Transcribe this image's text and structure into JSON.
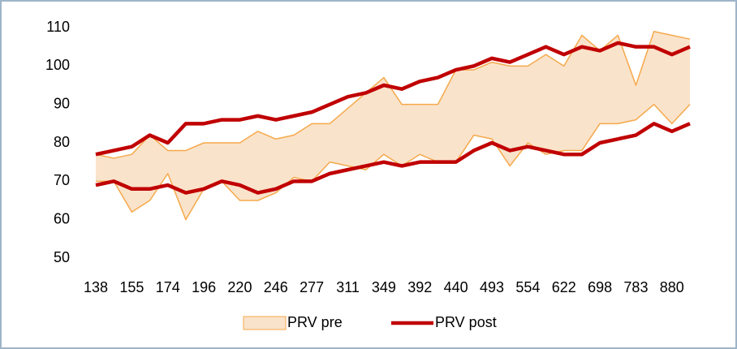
{
  "chart_data": {
    "type": "band",
    "categories": [
      138,
      null,
      155,
      null,
      174,
      null,
      196,
      null,
      220,
      null,
      246,
      null,
      277,
      null,
      311,
      null,
      349,
      null,
      392,
      null,
      440,
      null,
      493,
      null,
      554,
      null,
      622,
      null,
      698,
      null,
      783,
      null,
      880,
      null
    ],
    "series": [
      {
        "name": "PRV pre",
        "color": "#f5a94b",
        "fill": "#fae3cb",
        "high": [
          77,
          76,
          77,
          82,
          78,
          78,
          80,
          80,
          80,
          83,
          81,
          82,
          85,
          85,
          89,
          93,
          97,
          90,
          90,
          90,
          99,
          99,
          101,
          100,
          100,
          103,
          100,
          108,
          104,
          108,
          95,
          109,
          108,
          107
        ],
        "low": [
          70,
          70,
          62,
          65,
          72,
          60,
          68,
          70,
          65,
          65,
          67,
          71,
          70,
          75,
          74,
          73,
          77,
          74,
          77,
          75,
          75,
          82,
          81,
          74,
          80,
          77,
          78,
          78,
          85,
          85,
          86,
          90,
          85,
          90
        ]
      },
      {
        "name": "PRV post",
        "color": "#c00000",
        "high": [
          77,
          78,
          79,
          82,
          80,
          85,
          85,
          86,
          86,
          87,
          86,
          87,
          88,
          90,
          92,
          93,
          95,
          94,
          96,
          97,
          99,
          100,
          102,
          101,
          103,
          105,
          103,
          105,
          104,
          106,
          105,
          105,
          103,
          105
        ],
        "low": [
          69,
          70,
          68,
          68,
          69,
          67,
          68,
          70,
          69,
          67,
          68,
          70,
          70,
          72,
          73,
          74,
          75,
          74,
          75,
          75,
          75,
          78,
          80,
          78,
          79,
          78,
          77,
          77,
          80,
          81,
          82,
          85,
          83,
          85
        ]
      }
    ],
    "ylim": [
      50,
      110
    ],
    "yticks": [
      50,
      60,
      70,
      80,
      90,
      100,
      110
    ],
    "grid": false,
    "legend": "bottom"
  }
}
